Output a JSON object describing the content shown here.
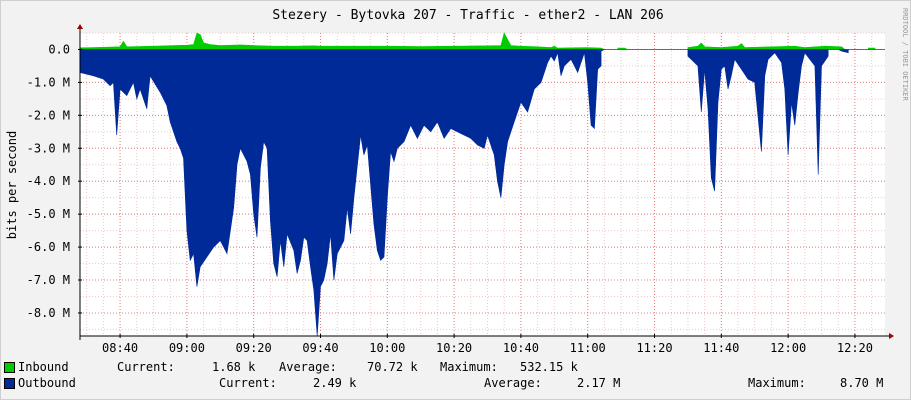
{
  "chart_data": {
    "type": "area",
    "title": "Stezery - Bytovka 207 - Traffic - ether2 - LAN 206",
    "ylabel": "bits per second",
    "watermark": "RRDTOOL / TOBI OETIKER",
    "y_ticks": [
      "0.0",
      "-1.0 M",
      "-2.0 M",
      "-3.0 M",
      "-4.0 M",
      "-5.0 M",
      "-6.0 M",
      "-7.0 M",
      "-8.0 M"
    ],
    "y_tick_values": [
      0,
      -1,
      -2,
      -3,
      -4,
      -5,
      -6,
      -7,
      -8
    ],
    "ylim": [
      -8.7,
      0.5
    ],
    "x_ticks": [
      "08:40",
      "09:00",
      "09:20",
      "09:40",
      "10:00",
      "10:20",
      "10:40",
      "11:00",
      "11:20",
      "11:40",
      "12:00",
      "12:20"
    ],
    "x_tick_minutes": [
      520,
      540,
      560,
      580,
      600,
      620,
      640,
      660,
      680,
      700,
      720,
      740
    ],
    "xlim_minutes": [
      508,
      749
    ],
    "grid": true,
    "colors": {
      "inbound": "#00cc00",
      "outbound": "#002a97",
      "grid": "#ff0000",
      "background": "#ffffff"
    },
    "series": [
      {
        "name": "Inbound",
        "unit": "M bits/s",
        "points": [
          [
            508,
            0.05
          ],
          [
            512,
            0.06
          ],
          [
            520,
            0.08
          ],
          [
            521,
            0.25
          ],
          [
            522,
            0.08
          ],
          [
            530,
            0.1
          ],
          [
            536,
            0.12
          ],
          [
            540,
            0.13
          ],
          [
            542,
            0.15
          ],
          [
            543,
            0.5
          ],
          [
            544,
            0.45
          ],
          [
            545,
            0.2
          ],
          [
            547,
            0.15
          ],
          [
            550,
            0.12
          ],
          [
            556,
            0.14
          ],
          [
            560,
            0.12
          ],
          [
            566,
            0.1
          ],
          [
            572,
            0.1
          ],
          [
            578,
            0.11
          ],
          [
            580,
            0.1
          ],
          [
            590,
            0.1
          ],
          [
            600,
            0.1
          ],
          [
            610,
            0.09
          ],
          [
            620,
            0.1
          ],
          [
            630,
            0.11
          ],
          [
            634,
            0.12
          ],
          [
            635,
            0.5
          ],
          [
            636,
            0.3
          ],
          [
            637,
            0.12
          ],
          [
            640,
            0.1
          ],
          [
            645,
            0.08
          ],
          [
            649,
            0.06
          ],
          [
            650,
            0.1
          ],
          [
            651,
            0.04
          ],
          [
            655,
            0.05
          ],
          [
            660,
            0.06
          ],
          [
            664,
            0.04
          ],
          [
            665,
            0
          ],
          [
            669,
            0
          ],
          [
            669,
            0.04
          ],
          [
            671,
            0.04
          ],
          [
            672,
            0
          ],
          [
            690,
            0
          ],
          [
            690,
            0.06
          ],
          [
            693,
            0.1
          ],
          [
            694,
            0.2
          ],
          [
            695,
            0.08
          ],
          [
            700,
            0.06
          ],
          [
            705,
            0.1
          ],
          [
            706,
            0.18
          ],
          [
            707,
            0.06
          ],
          [
            715,
            0.08
          ],
          [
            722,
            0.1
          ],
          [
            725,
            0.06
          ],
          [
            731,
            0.1
          ],
          [
            736,
            0.08
          ],
          [
            737,
            0
          ],
          [
            744,
            0
          ],
          [
            744,
            0.04
          ],
          [
            746,
            0.04
          ],
          [
            746,
            0
          ],
          [
            749,
            0
          ]
        ]
      },
      {
        "name": "Outbound",
        "unit": "M bits/s",
        "points": [
          [
            508,
            -0.7
          ],
          [
            512,
            -0.8
          ],
          [
            515,
            -0.9
          ],
          [
            517,
            -1.1
          ],
          [
            518,
            -1.0
          ],
          [
            519,
            -2.6
          ],
          [
            520,
            -1.2
          ],
          [
            522,
            -1.4
          ],
          [
            524,
            -1.0
          ],
          [
            525,
            -1.5
          ],
          [
            526,
            -1.2
          ],
          [
            528,
            -1.8
          ],
          [
            529,
            -0.8
          ],
          [
            532,
            -1.3
          ],
          [
            534,
            -1.7
          ],
          [
            535,
            -2.2
          ],
          [
            537,
            -2.8
          ],
          [
            538,
            -3.0
          ],
          [
            539,
            -3.3
          ],
          [
            540,
            -5.5
          ],
          [
            541,
            -6.4
          ],
          [
            542,
            -6.2
          ],
          [
            543,
            -7.2
          ],
          [
            544,
            -6.6
          ],
          [
            546,
            -6.3
          ],
          [
            548,
            -6.0
          ],
          [
            550,
            -5.8
          ],
          [
            552,
            -6.2
          ],
          [
            554,
            -4.8
          ],
          [
            555,
            -3.5
          ],
          [
            556,
            -3.0
          ],
          [
            558,
            -3.4
          ],
          [
            559,
            -3.8
          ],
          [
            560,
            -5.0
          ],
          [
            561,
            -5.7
          ],
          [
            562,
            -3.6
          ],
          [
            563,
            -2.8
          ],
          [
            564,
            -3.0
          ],
          [
            565,
            -5.2
          ],
          [
            566,
            -6.5
          ],
          [
            567,
            -6.9
          ],
          [
            568,
            -5.8
          ],
          [
            569,
            -6.6
          ],
          [
            570,
            -5.6
          ],
          [
            572,
            -6.1
          ],
          [
            573,
            -6.8
          ],
          [
            574,
            -6.4
          ],
          [
            575,
            -5.7
          ],
          [
            576,
            -5.8
          ],
          [
            577,
            -6.6
          ],
          [
            578,
            -7.3
          ],
          [
            579,
            -8.7
          ],
          [
            580,
            -7.2
          ],
          [
            581,
            -7.0
          ],
          [
            582,
            -6.5
          ],
          [
            583,
            -5.6
          ],
          [
            584,
            -7.0
          ],
          [
            585,
            -6.2
          ],
          [
            587,
            -5.8
          ],
          [
            588,
            -4.8
          ],
          [
            589,
            -5.6
          ],
          [
            590,
            -4.5
          ],
          [
            592,
            -2.6
          ],
          [
            593,
            -3.2
          ],
          [
            594,
            -2.9
          ],
          [
            595,
            -4.1
          ],
          [
            596,
            -5.3
          ],
          [
            597,
            -6.1
          ],
          [
            598,
            -6.4
          ],
          [
            599,
            -6.3
          ],
          [
            600,
            -4.5
          ],
          [
            601,
            -3.1
          ],
          [
            602,
            -3.4
          ],
          [
            603,
            -3.0
          ],
          [
            605,
            -2.8
          ],
          [
            607,
            -2.3
          ],
          [
            609,
            -2.7
          ],
          [
            611,
            -2.3
          ],
          [
            613,
            -2.5
          ],
          [
            615,
            -2.2
          ],
          [
            617,
            -2.7
          ],
          [
            619,
            -2.4
          ],
          [
            621,
            -2.5
          ],
          [
            623,
            -2.6
          ],
          [
            625,
            -2.7
          ],
          [
            627,
            -2.9
          ],
          [
            629,
            -3.0
          ],
          [
            630,
            -2.6
          ],
          [
            632,
            -3.2
          ],
          [
            633,
            -4.0
          ],
          [
            634,
            -4.5
          ],
          [
            635,
            -3.5
          ],
          [
            636,
            -2.8
          ],
          [
            638,
            -2.2
          ],
          [
            640,
            -1.6
          ],
          [
            642,
            -1.9
          ],
          [
            644,
            -1.2
          ],
          [
            646,
            -1.0
          ],
          [
            648,
            -0.4
          ],
          [
            649,
            -0.2
          ],
          [
            650,
            -0.35
          ],
          [
            651,
            -0.1
          ],
          [
            652,
            -0.8
          ],
          [
            653,
            -0.5
          ],
          [
            655,
            -0.3
          ],
          [
            656,
            -0.5
          ],
          [
            657,
            -0.7
          ],
          [
            658,
            -0.4
          ],
          [
            659,
            -0.1
          ],
          [
            660,
            -1.0
          ],
          [
            661,
            -2.3
          ],
          [
            662,
            -2.4
          ],
          [
            663,
            -0.6
          ],
          [
            664,
            -0.5
          ],
          [
            664,
            -0.05
          ],
          [
            665,
            0
          ],
          [
            690,
            0
          ],
          [
            690,
            -0.2
          ],
          [
            693,
            -0.5
          ],
          [
            694,
            -1.9
          ],
          [
            695,
            -0.6
          ],
          [
            696,
            -1.8
          ],
          [
            697,
            -3.9
          ],
          [
            698,
            -4.3
          ],
          [
            699,
            -1.6
          ],
          [
            700,
            -0.6
          ],
          [
            701,
            -0.5
          ],
          [
            702,
            -1.2
          ],
          [
            703,
            -0.8
          ],
          [
            704,
            -0.3
          ],
          [
            706,
            -0.6
          ],
          [
            708,
            -0.9
          ],
          [
            710,
            -1.0
          ],
          [
            712,
            -3.1
          ],
          [
            713,
            -0.8
          ],
          [
            714,
            -0.3
          ],
          [
            716,
            -0.1
          ],
          [
            718,
            -0.4
          ],
          [
            719,
            -1.2
          ],
          [
            720,
            -3.2
          ],
          [
            721,
            -1.6
          ],
          [
            722,
            -2.3
          ],
          [
            723,
            -1.3
          ],
          [
            724,
            -0.5
          ],
          [
            725,
            -0.1
          ],
          [
            728,
            -0.5
          ],
          [
            729,
            -3.8
          ],
          [
            730,
            -0.5
          ],
          [
            732,
            -0.2
          ],
          [
            732,
            0
          ],
          [
            735,
            0
          ],
          [
            736,
            -0.05
          ],
          [
            738,
            -0.1
          ],
          [
            738,
            0
          ],
          [
            749,
            0
          ]
        ]
      }
    ],
    "legend": [
      {
        "name": "Inbound",
        "current_label": "Current:",
        "current": "1.68 k",
        "average_label": "Average:",
        "average": "70.72 k",
        "maximum_label": "Maximum:",
        "maximum": "532.15 k"
      },
      {
        "name": "Outbound",
        "current_label": "Current:",
        "current": "2.49 k",
        "average_label": "Average:",
        "average": "2.17 M",
        "maximum_label": "Maximum:",
        "maximum": "8.70 M"
      }
    ]
  }
}
